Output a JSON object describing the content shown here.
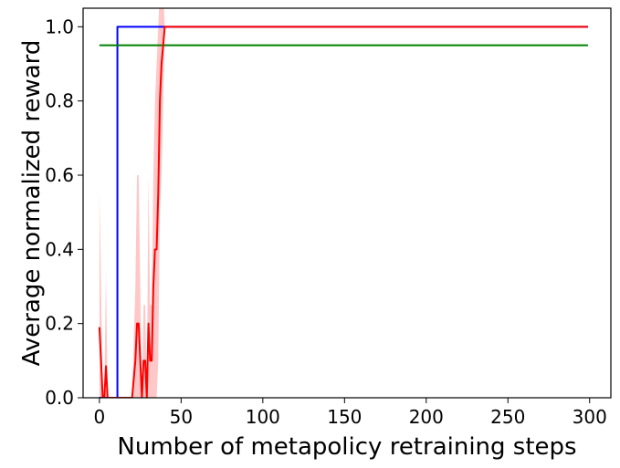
{
  "chart_data": {
    "type": "line",
    "title": "",
    "xlabel": "Number of metapolicy retraining steps",
    "ylabel": "Average normalized reward",
    "xlim": [
      -10,
      313
    ],
    "ylim": [
      0.0,
      1.05
    ],
    "xticks": [
      0,
      50,
      100,
      150,
      200,
      250,
      300
    ],
    "yticks": [
      0.0,
      0.2,
      0.4,
      0.6,
      0.8,
      1.0
    ],
    "xtick_labels": [
      "0",
      "50",
      "100",
      "150",
      "200",
      "250",
      "300"
    ],
    "ytick_labels": [
      "0.0",
      "0.2",
      "0.4",
      "0.6",
      "0.8",
      "1.0"
    ],
    "grid": false,
    "legend": "none",
    "series": [
      {
        "color": "#0000ff",
        "x": [
          0,
          11,
          11,
          40,
          299
        ],
        "y": [
          0.0,
          0.0,
          1.0,
          1.0,
          1.0
        ]
      },
      {
        "color": "#008000",
        "x": [
          0,
          299
        ],
        "y": [
          0.95,
          0.95
        ]
      },
      {
        "color": "#ff0000",
        "band_color": "#ff9999",
        "x": [
          0,
          1,
          2,
          3,
          4,
          5,
          6,
          7,
          8,
          20,
          22,
          23,
          24,
          25,
          26,
          27,
          28,
          29,
          30,
          31,
          32,
          33,
          34,
          35,
          36,
          37,
          38,
          39,
          40,
          41,
          299
        ],
        "y": [
          0.19,
          0.1,
          0.0,
          0.0,
          0.085,
          0.0,
          0.0,
          0.0,
          0.0,
          0.0,
          0.1,
          0.2,
          0.2,
          0.1,
          0.0,
          0.1,
          0.1,
          0.0,
          0.2,
          0.1,
          0.1,
          0.3,
          0.4,
          0.4,
          0.55,
          0.8,
          0.9,
          0.95,
          1.0,
          1.0,
          1.0
        ],
        "upper": [
          0.56,
          0.3,
          0.0,
          0.0,
          0.34,
          0.0,
          0.0,
          0.0,
          0.0,
          0.0,
          0.3,
          0.6,
          0.6,
          0.3,
          0.0,
          0.25,
          0.25,
          0.0,
          0.6,
          0.25,
          0.25,
          0.6,
          0.8,
          0.9,
          1.0,
          1.1,
          1.2,
          1.1,
          1.0,
          1.0,
          1.0
        ],
        "lower": [
          0.0,
          0.0,
          0.0,
          0.0,
          0.0,
          0.0,
          0.0,
          0.0,
          0.0,
          0.0,
          0.0,
          0.0,
          0.0,
          0.0,
          0.0,
          0.0,
          0.0,
          0.0,
          0.0,
          0.0,
          0.0,
          0.0,
          0.0,
          0.0,
          0.1,
          0.5,
          0.6,
          0.8,
          1.0,
          1.0,
          1.0
        ]
      }
    ]
  }
}
